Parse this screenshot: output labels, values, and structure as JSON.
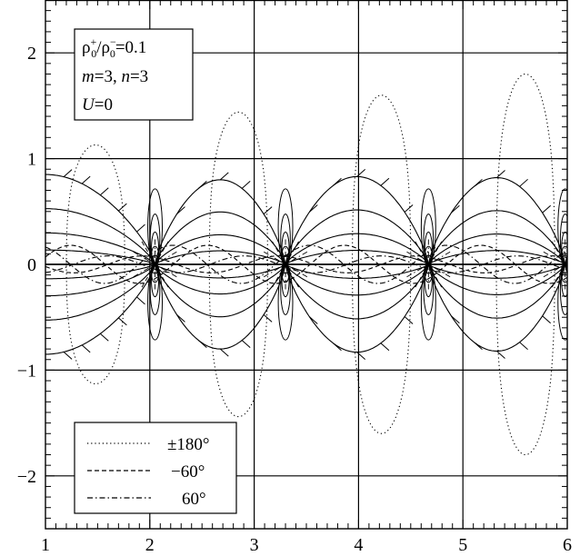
{
  "chart_data": {
    "type": "line",
    "title": "",
    "xlabel": "",
    "ylabel": "",
    "xlim": [
      1,
      6
    ],
    "ylim": [
      -2.5,
      2.5
    ],
    "grid": true,
    "x_ticks": [
      1,
      2,
      3,
      4,
      5,
      6
    ],
    "y_ticks": [
      -2,
      -1,
      0,
      1,
      2
    ],
    "x_tick_labels": [
      "1",
      "2",
      "3",
      "4",
      "5",
      "6"
    ],
    "y_tick_labels": [
      "−2",
      "−1",
      "0",
      "1",
      "2"
    ],
    "annotation": {
      "line1_base": "ρ",
      "line1_sub1": "0",
      "line1_sup1": "+",
      "line1_slash": "/ρ",
      "line1_sub2": "0",
      "line1_sup2": "−",
      "line1_value": "=0.1",
      "line2_m": "m",
      "line2_mval": "=3, ",
      "line2_n": "n",
      "line2_nval": "=3",
      "line3_u": "U",
      "line3_uval": "=0"
    },
    "legend_position": "bottom-left",
    "series": [
      {
        "name": "±180°",
        "style": "dotted"
      },
      {
        "name": "−60°",
        "style": "dashed"
      },
      {
        "name": "60°",
        "style": "dashdot"
      }
    ],
    "singularities_x": [
      2.05,
      3.3,
      4.67,
      5.98
    ],
    "lobe_centers_x": [
      1.4,
      2.65,
      3.98,
      5.3
    ],
    "lobe_heights": [
      0.85,
      0.8,
      0.83,
      0.82
    ],
    "dotted_lobes": [
      {
        "x_center": 1.48,
        "y_max": 1.13
      },
      {
        "x_center": 2.85,
        "y_max": 1.44
      },
      {
        "x_center": 4.22,
        "y_max": 1.6
      },
      {
        "x_center": 5.6,
        "y_max": 1.8
      }
    ]
  }
}
